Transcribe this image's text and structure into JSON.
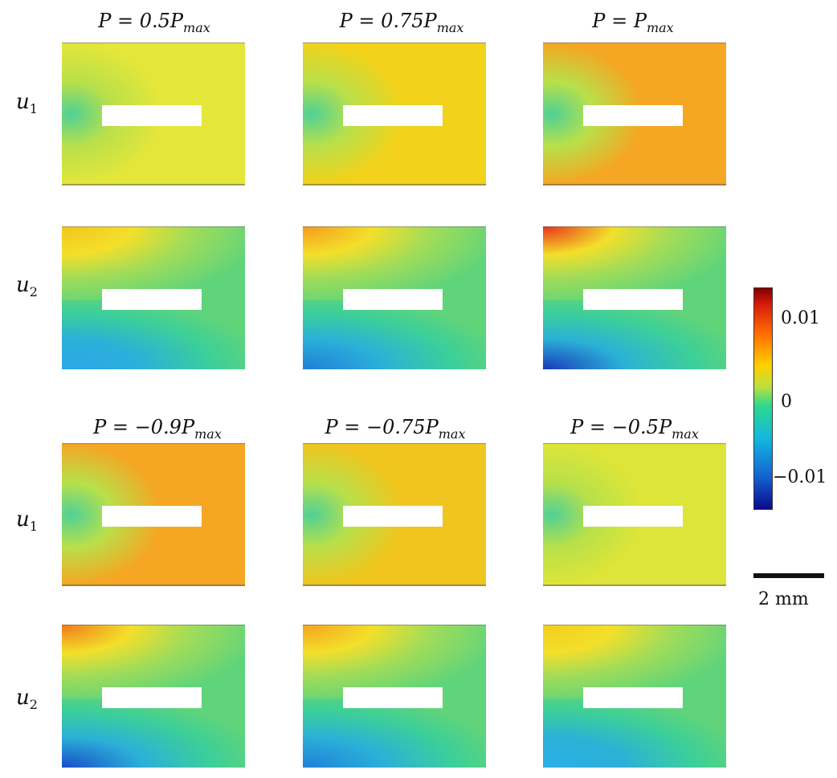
{
  "titles_top": [
    "P = 0.5P",
    "P = 0.75P",
    "P = P"
  ],
  "titles_bottom": [
    "P = −0.9P",
    "P = −0.75P",
    "P = −0.5P"
  ],
  "subscript": "max",
  "row_labels": [
    "u",
    "u",
    "u",
    "u"
  ],
  "row_subs": [
    "1",
    "2",
    "1",
    "2"
  ],
  "colorbar": {
    "ticks": [
      "0.01",
      "0",
      "−0.01"
    ]
  },
  "scale_bar_label": "2 mm",
  "field_colors": {
    "u1": [
      "#e4e63a",
      "#f2d21a",
      "#f5a623",
      "#f5a623",
      "#f0c51e",
      "#dde538"
    ],
    "u2_top": [
      "#f2c61c",
      "#f59a1e",
      "#e8301a",
      "#f07a18",
      "#f5a21e",
      "#f3cd1c"
    ],
    "u2_bottom": [
      "#2aa8e8",
      "#1f7fd8",
      "#1a3ab8",
      "#1a4dc8",
      "#1f80d8",
      "#2ab0e6"
    ],
    "u2_right": "#5fd47a"
  }
}
